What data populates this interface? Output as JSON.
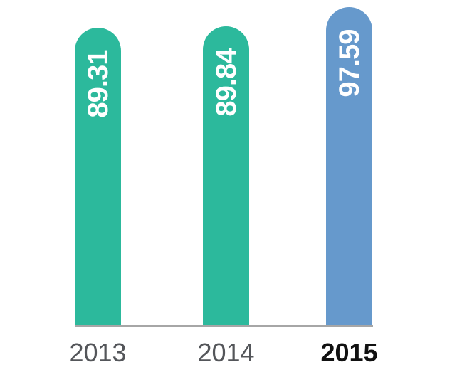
{
  "chart_data": {
    "type": "bar",
    "title": "",
    "xlabel": "",
    "ylabel": "",
    "categories": [
      "2013",
      "2014",
      "2015"
    ],
    "values": [
      89.31,
      89.84,
      97.59
    ],
    "value_labels": [
      "89.31",
      "89.84",
      "97.59"
    ],
    "grid": false,
    "legend": "none",
    "y_axis_visible": false,
    "baseline_visible": true,
    "baseline_color": "#a6a6a6",
    "bar_colors": [
      "#2cb99c",
      "#2cb99c",
      "#6699cc"
    ],
    "highlighted_category": "2015",
    "accent_color": "#6699cc",
    "series_color": "#2cb99c",
    "value_label_color": "#ffffff",
    "value_label_rotation_deg": -90,
    "tick_label_colors": [
      "#54565a",
      "#54565a",
      "#111111"
    ],
    "tick_label_bold": [
      false,
      false,
      true
    ]
  }
}
